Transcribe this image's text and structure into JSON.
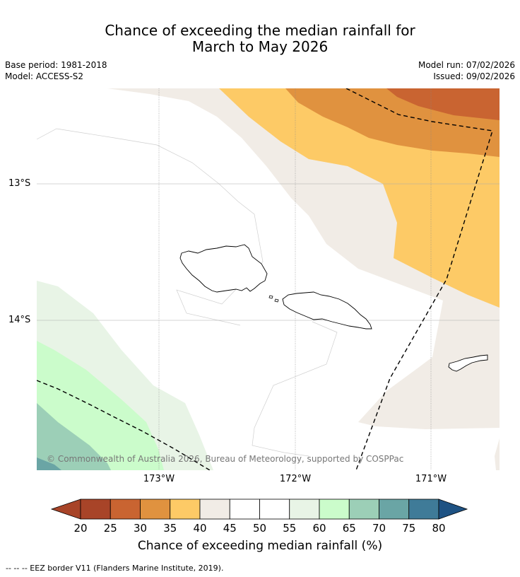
{
  "title": {
    "line1": "Chance of exceeding the median rainfall for",
    "line2": "March to May 2026"
  },
  "meta": {
    "base_period": "Base period: 1981-2018",
    "model": "Model: ACCESS-S2",
    "model_run": "Model run: 07/02/2026",
    "issued": "Issued: 09/02/2026"
  },
  "axes": {
    "lat_labels": [
      "13°S",
      "14°S"
    ],
    "lon_labels": [
      "173°W",
      "172°W",
      "171°W"
    ]
  },
  "copyright": "© Commonwealth of Australia 2026, Bureau of Meteorology, supported by COSPPac",
  "colorbar": {
    "ticks": [
      "20",
      "25",
      "30",
      "35",
      "40",
      "45",
      "50",
      "55",
      "60",
      "65",
      "70",
      "75",
      "80"
    ],
    "colors": [
      "#a84428",
      "#c96431",
      "#e0923f",
      "#fdca66",
      "#f1ece6",
      "#ffffff",
      "#ffffff",
      "#e8f4e6",
      "#cbfccb",
      "#9ccfb7",
      "#6aa5a5",
      "#3f7b98",
      "#1e5283"
    ],
    "label": "Chance of exceeding median rainfall (%)"
  },
  "footnote": "--  --  -- EEZ border V11 (Flanders Marine Institute, 2019)."
}
